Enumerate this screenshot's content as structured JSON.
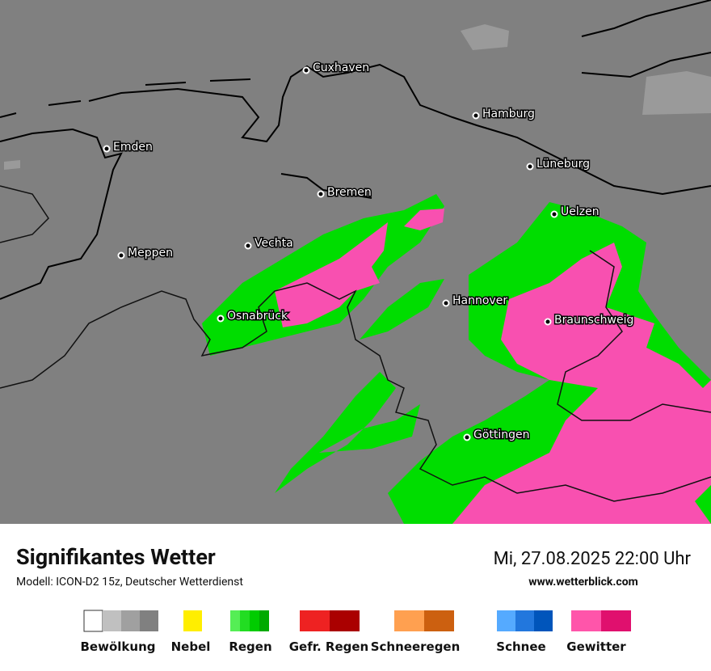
{
  "map": {
    "cities": [
      "Cuxhaven",
      "Hamburg",
      "Emden",
      "Lüneburg",
      "Bremen",
      "Uelzen",
      "Vechta",
      "Meppen",
      "Hannover",
      "Osnabrück",
      "Braunschweig",
      "Göttingen"
    ]
  },
  "footer": {
    "title": "Signifikantes Wetter",
    "model": "Modell: ICON-D2 15z, Deutscher Wetterdienst",
    "datetime": "Mi, 27.08.2025 22:00 Uhr",
    "website": "www.wetterblick.com"
  },
  "legend": [
    {
      "label": "Bewölkung",
      "colors": [
        "#ffffff",
        "#c0c0c0",
        "#a0a0a0",
        "#808080"
      ]
    },
    {
      "label": "Nebel",
      "colors": [
        "#ffee00"
      ]
    },
    {
      "label": "Regen",
      "colors": [
        "#55ee55",
        "#22dd22",
        "#00cc00",
        "#00aa00"
      ]
    },
    {
      "label": "Gefr. Regen",
      "colors": [
        "#ee2222",
        "#aa0000"
      ]
    },
    {
      "label": "Schneeregen",
      "colors": [
        "#ffa050",
        "#cc6010"
      ]
    },
    {
      "label": "Schnee",
      "colors": [
        "#55aaff",
        "#2277dd",
        "#0055bb"
      ]
    },
    {
      "label": "Gewitter",
      "colors": [
        "#ff55aa",
        "#e0106e"
      ]
    }
  ]
}
